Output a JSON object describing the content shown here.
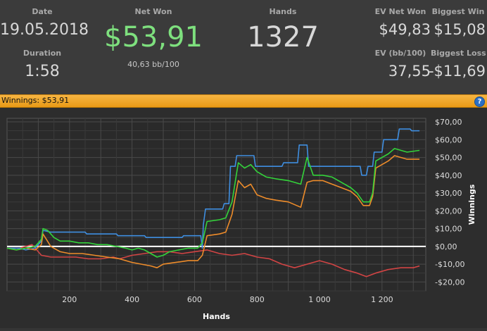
{
  "stats": {
    "date": {
      "label": "Date",
      "value": "19.05.2018"
    },
    "duration": {
      "label": "Duration",
      "value": "1:58"
    },
    "net_won": {
      "label": "Net Won",
      "value": "$53,91",
      "sub": "40,63 bb/100"
    },
    "hands": {
      "label": "Hands",
      "value": "1327"
    },
    "ev_net_won": {
      "label": "EV Net Won",
      "value": "$49,83"
    },
    "ev_bb": {
      "label": "EV (bb/100)",
      "value": "37,55"
    },
    "biggest_win": {
      "label": "Biggest Win",
      "value": "$15,08"
    },
    "biggest_loss": {
      "label": "Biggest Loss",
      "value": "-$11,69"
    }
  },
  "winnings_bar": {
    "text": "Winnings: $53,91",
    "help_icon": "help-icon"
  },
  "colors": {
    "net_won": "#7ee07e",
    "blue": "#3f8ee0",
    "green": "#33d33a",
    "orange": "#ee8c2a",
    "red": "#d24444",
    "zero": "#ffffff",
    "bar": "#f0a733"
  },
  "chart_data": {
    "type": "line",
    "xlabel": "Hands",
    "ylabel": "Winnings",
    "xlim": [
      0,
      1340
    ],
    "ylim": [
      -25,
      72
    ],
    "x_ticks": [
      200,
      400,
      600,
      800,
      1000,
      1200
    ],
    "x_tick_labels": [
      "200",
      "400",
      "600",
      "800",
      "1 000",
      "1 200"
    ],
    "y_ticks": [
      70,
      60,
      50,
      40,
      30,
      20,
      10,
      0,
      -10,
      -20
    ],
    "y_tick_labels": [
      "$70,00",
      "$60,00",
      "$50,00",
      "$40,00",
      "$30,00",
      "$20,00",
      "$10,00",
      "$0,00",
      "-$10,00",
      "-$20,00"
    ],
    "grid": true,
    "series": [
      {
        "color": "blue",
        "points": [
          [
            0,
            -1
          ],
          [
            40,
            -1
          ],
          [
            60,
            -2
          ],
          [
            90,
            -1
          ],
          [
            110,
            3
          ],
          [
            115,
            9
          ],
          [
            140,
            8
          ],
          [
            250,
            8
          ],
          [
            255,
            7
          ],
          [
            350,
            7
          ],
          [
            355,
            6
          ],
          [
            440,
            6
          ],
          [
            445,
            5
          ],
          [
            560,
            5
          ],
          [
            565,
            6
          ],
          [
            620,
            6
          ],
          [
            625,
            -1
          ],
          [
            628,
            12
          ],
          [
            635,
            21
          ],
          [
            690,
            21
          ],
          [
            695,
            24
          ],
          [
            710,
            24
          ],
          [
            715,
            45
          ],
          [
            730,
            45
          ],
          [
            735,
            51
          ],
          [
            790,
            51
          ],
          [
            795,
            45
          ],
          [
            880,
            45
          ],
          [
            885,
            47
          ],
          [
            930,
            47
          ],
          [
            935,
            57
          ],
          [
            960,
            57
          ],
          [
            965,
            45
          ],
          [
            1130,
            45
          ],
          [
            1135,
            40
          ],
          [
            1150,
            40
          ],
          [
            1155,
            45
          ],
          [
            1170,
            45
          ],
          [
            1175,
            53
          ],
          [
            1200,
            53
          ],
          [
            1205,
            60
          ],
          [
            1250,
            60
          ],
          [
            1255,
            66
          ],
          [
            1290,
            66
          ],
          [
            1295,
            65
          ],
          [
            1320,
            65
          ]
        ]
      },
      {
        "color": "green",
        "points": [
          [
            0,
            -1
          ],
          [
            30,
            -2
          ],
          [
            60,
            -1
          ],
          [
            90,
            0
          ],
          [
            110,
            4
          ],
          [
            115,
            10
          ],
          [
            130,
            9
          ],
          [
            150,
            5
          ],
          [
            170,
            3
          ],
          [
            200,
            3
          ],
          [
            230,
            2
          ],
          [
            260,
            2
          ],
          [
            290,
            1
          ],
          [
            320,
            1
          ],
          [
            350,
            0
          ],
          [
            380,
            -1
          ],
          [
            400,
            -2
          ],
          [
            420,
            -1
          ],
          [
            440,
            -2
          ],
          [
            460,
            -4
          ],
          [
            480,
            -6
          ],
          [
            500,
            -5
          ],
          [
            520,
            -3
          ],
          [
            550,
            -2
          ],
          [
            580,
            -1
          ],
          [
            610,
            -1
          ],
          [
            625,
            2
          ],
          [
            640,
            14
          ],
          [
            680,
            15
          ],
          [
            700,
            16
          ],
          [
            720,
            25
          ],
          [
            740,
            47
          ],
          [
            760,
            44
          ],
          [
            780,
            46
          ],
          [
            800,
            42
          ],
          [
            830,
            39
          ],
          [
            860,
            38
          ],
          [
            900,
            37
          ],
          [
            940,
            35
          ],
          [
            960,
            50
          ],
          [
            980,
            40
          ],
          [
            1010,
            40
          ],
          [
            1040,
            39
          ],
          [
            1070,
            36
          ],
          [
            1100,
            33
          ],
          [
            1120,
            30
          ],
          [
            1140,
            25
          ],
          [
            1160,
            25
          ],
          [
            1170,
            30
          ],
          [
            1180,
            48
          ],
          [
            1220,
            52
          ],
          [
            1240,
            55
          ],
          [
            1280,
            53
          ],
          [
            1320,
            54
          ]
        ]
      },
      {
        "color": "orange",
        "points": [
          [
            0,
            -1
          ],
          [
            30,
            -2
          ],
          [
            60,
            -1
          ],
          [
            90,
            -2
          ],
          [
            110,
            1
          ],
          [
            115,
            7
          ],
          [
            140,
            0
          ],
          [
            170,
            -3
          ],
          [
            200,
            -4
          ],
          [
            240,
            -4
          ],
          [
            280,
            -5
          ],
          [
            320,
            -6
          ],
          [
            360,
            -7
          ],
          [
            400,
            -9
          ],
          [
            430,
            -10
          ],
          [
            460,
            -11
          ],
          [
            480,
            -12
          ],
          [
            500,
            -10
          ],
          [
            540,
            -9
          ],
          [
            580,
            -8
          ],
          [
            610,
            -8
          ],
          [
            625,
            -5
          ],
          [
            640,
            6
          ],
          [
            680,
            7
          ],
          [
            700,
            8
          ],
          [
            720,
            18
          ],
          [
            740,
            37
          ],
          [
            760,
            33
          ],
          [
            780,
            35
          ],
          [
            800,
            29
          ],
          [
            830,
            27
          ],
          [
            860,
            26
          ],
          [
            900,
            25
          ],
          [
            940,
            22
          ],
          [
            960,
            36
          ],
          [
            980,
            37
          ],
          [
            1010,
            37
          ],
          [
            1040,
            35
          ],
          [
            1070,
            33
          ],
          [
            1100,
            31
          ],
          [
            1120,
            28
          ],
          [
            1140,
            23
          ],
          [
            1160,
            23
          ],
          [
            1170,
            28
          ],
          [
            1180,
            44
          ],
          [
            1220,
            48
          ],
          [
            1240,
            51
          ],
          [
            1280,
            49
          ],
          [
            1320,
            49
          ]
        ]
      },
      {
        "color": "red",
        "points": [
          [
            0,
            -1
          ],
          [
            40,
            -1
          ],
          [
            60,
            0
          ],
          [
            80,
            1
          ],
          [
            100,
            -3
          ],
          [
            110,
            -5
          ],
          [
            140,
            -6
          ],
          [
            180,
            -6
          ],
          [
            220,
            -6
          ],
          [
            260,
            -7
          ],
          [
            300,
            -7
          ],
          [
            340,
            -6
          ],
          [
            360,
            -7
          ],
          [
            400,
            -5
          ],
          [
            440,
            -4
          ],
          [
            480,
            -3
          ],
          [
            520,
            -3
          ],
          [
            560,
            -4
          ],
          [
            600,
            -3
          ],
          [
            640,
            -2
          ],
          [
            680,
            -4
          ],
          [
            720,
            -5
          ],
          [
            760,
            -4
          ],
          [
            800,
            -6
          ],
          [
            840,
            -7
          ],
          [
            880,
            -10
          ],
          [
            920,
            -12
          ],
          [
            960,
            -10
          ],
          [
            1000,
            -8
          ],
          [
            1040,
            -10
          ],
          [
            1080,
            -13
          ],
          [
            1120,
            -15
          ],
          [
            1150,
            -17
          ],
          [
            1180,
            -15
          ],
          [
            1220,
            -13
          ],
          [
            1260,
            -12
          ],
          [
            1300,
            -12
          ],
          [
            1320,
            -11
          ]
        ]
      }
    ]
  }
}
